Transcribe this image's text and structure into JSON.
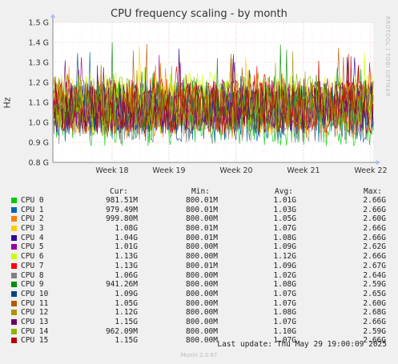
{
  "chart_data": {
    "type": "line",
    "title": "CPU frequency scaling - by month",
    "ylabel": "Hz",
    "yticks": [
      "0.8 G",
      "0.9 G",
      "1.0 G",
      "1.1 G",
      "1.2 G",
      "1.3 G",
      "1.4 G",
      "1.5 G"
    ],
    "ylim": [
      0.8,
      1.5
    ],
    "xticks": [
      "Week 18",
      "Week 19",
      "Week 20",
      "Week 21",
      "Week 22"
    ],
    "grid": true,
    "legend_headers": {
      "cur": "Cur:",
      "min": "Min:",
      "avg": "Avg:",
      "max": "Max:"
    },
    "series": [
      {
        "name": "CPU 0",
        "color": "#00cc00",
        "cur": "981.51M",
        "min": "800.01M",
        "avg": "1.01G",
        "max": "2.66G"
      },
      {
        "name": "CPU 1",
        "color": "#0066b3",
        "cur": "979.49M",
        "min": "800.01M",
        "avg": "1.03G",
        "max": "2.66G"
      },
      {
        "name": "CPU 2",
        "color": "#ff8000",
        "cur": "999.80M",
        "min": "800.00M",
        "avg": "1.05G",
        "max": "2.60G"
      },
      {
        "name": "CPU 3",
        "color": "#ffcc00",
        "cur": "1.08G",
        "min": "800.01M",
        "avg": "1.07G",
        "max": "2.66G"
      },
      {
        "name": "CPU 4",
        "color": "#330099",
        "cur": "1.04G",
        "min": "800.01M",
        "avg": "1.08G",
        "max": "2.66G"
      },
      {
        "name": "CPU 5",
        "color": "#990099",
        "cur": "1.01G",
        "min": "800.00M",
        "avg": "1.09G",
        "max": "2.62G"
      },
      {
        "name": "CPU 6",
        "color": "#ccff00",
        "cur": "1.13G",
        "min": "800.00M",
        "avg": "1.12G",
        "max": "2.66G"
      },
      {
        "name": "CPU 7",
        "color": "#ff0000",
        "cur": "1.13G",
        "min": "800.01M",
        "avg": "1.09G",
        "max": "2.67G"
      },
      {
        "name": "CPU 8",
        "color": "#808080",
        "cur": "1.06G",
        "min": "800.00M",
        "avg": "1.02G",
        "max": "2.64G"
      },
      {
        "name": "CPU 9",
        "color": "#008f00",
        "cur": "941.26M",
        "min": "800.00M",
        "avg": "1.08G",
        "max": "2.59G"
      },
      {
        "name": "CPU 10",
        "color": "#00487d",
        "cur": "1.09G",
        "min": "800.00M",
        "avg": "1.07G",
        "max": "2.65G"
      },
      {
        "name": "CPU 11",
        "color": "#b35a00",
        "cur": "1.05G",
        "min": "800.00M",
        "avg": "1.07G",
        "max": "2.60G"
      },
      {
        "name": "CPU 12",
        "color": "#b38f00",
        "cur": "1.12G",
        "min": "800.00M",
        "avg": "1.08G",
        "max": "2.68G"
      },
      {
        "name": "CPU 13",
        "color": "#6b006b",
        "cur": "1.15G",
        "min": "800.00M",
        "avg": "1.07G",
        "max": "2.66G"
      },
      {
        "name": "CPU 14",
        "color": "#8fb300",
        "cur": "962.09M",
        "min": "800.00M",
        "avg": "1.10G",
        "max": "2.59G"
      },
      {
        "name": "CPU 15",
        "color": "#b30000",
        "cur": "1.15G",
        "min": "800.00M",
        "avg": "1.07G",
        "max": "2.66G"
      }
    ]
  },
  "watermark": "RRDTOOL / TOBI OETIKER",
  "last_update": "Last update: Thu May 29 19:00:09 2025",
  "footer": "Munin 2.0.67"
}
